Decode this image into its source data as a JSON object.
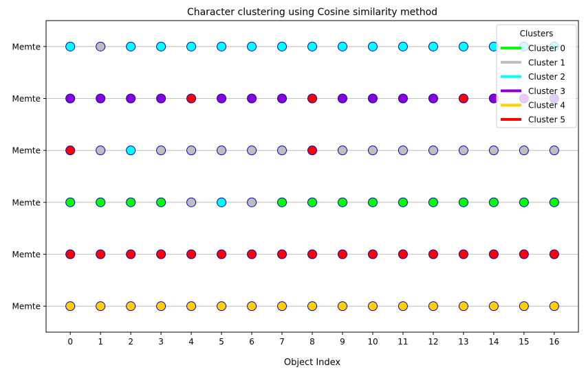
{
  "chart_data": {
    "type": "scatter",
    "title": "Character clustering using Cosine similarity method",
    "xlabel": "Object Index",
    "ylabel": "",
    "x": [
      0,
      1,
      2,
      3,
      4,
      5,
      6,
      7,
      8,
      9,
      10,
      11,
      12,
      13,
      14,
      15,
      16
    ],
    "xlim": [
      -0.8,
      16.8
    ],
    "rows": [
      {
        "label": "Memte",
        "clusters": [
          2,
          1,
          2,
          2,
          2,
          2,
          2,
          2,
          2,
          2,
          2,
          2,
          2,
          2,
          2,
          2,
          2
        ]
      },
      {
        "label": "Memte",
        "clusters": [
          3,
          3,
          3,
          3,
          5,
          3,
          3,
          3,
          5,
          3,
          3,
          3,
          3,
          5,
          3,
          3,
          3
        ]
      },
      {
        "label": "Memte",
        "clusters": [
          5,
          1,
          2,
          1,
          1,
          1,
          1,
          1,
          5,
          1,
          1,
          1,
          1,
          1,
          1,
          1,
          1
        ]
      },
      {
        "label": "Memte",
        "clusters": [
          0,
          0,
          0,
          0,
          1,
          2,
          1,
          0,
          0,
          0,
          0,
          0,
          0,
          0,
          0,
          0,
          0
        ]
      },
      {
        "label": "Memte",
        "clusters": [
          5,
          5,
          5,
          5,
          5,
          5,
          5,
          5,
          5,
          5,
          5,
          5,
          5,
          5,
          5,
          5,
          5
        ]
      },
      {
        "label": "Memte",
        "clusters": [
          4,
          4,
          4,
          4,
          4,
          4,
          4,
          4,
          4,
          4,
          4,
          4,
          4,
          4,
          4,
          4,
          4
        ]
      }
    ],
    "grid": "horizontal",
    "marker_edge_color": "#0000cc",
    "legend": {
      "title": "Clusters",
      "placement": "top-right",
      "entries": [
        {
          "name": "Cluster 0",
          "color": "#00ff00"
        },
        {
          "name": "Cluster 1",
          "color": "#bebebe"
        },
        {
          "name": "Cluster 2",
          "color": "#00ffff"
        },
        {
          "name": "Cluster 3",
          "color": "#8a00d4"
        },
        {
          "name": "Cluster 4",
          "color": "#ffd000"
        },
        {
          "name": "Cluster 5",
          "color": "#ff0000"
        }
      ]
    }
  }
}
